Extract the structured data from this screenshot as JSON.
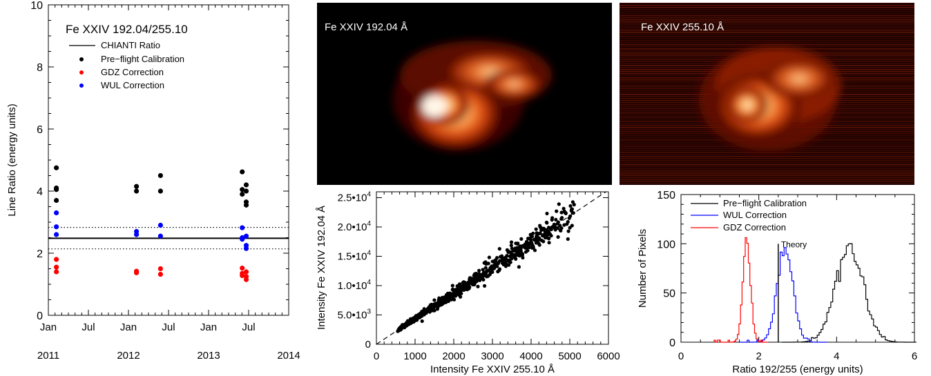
{
  "chart_data": [
    {
      "type": "scatter",
      "title": "Fe XXIV 192.04/255.10",
      "ylabel": "Line Ratio (energy units)",
      "xlabel": "",
      "ylim": [
        0,
        10
      ],
      "yticks": [
        "0",
        "2",
        "4",
        "6",
        "8",
        "10"
      ],
      "xticks": [
        {
          "label": "Jan",
          "x": 2011.0
        },
        {
          "label": "Jul",
          "x": 2011.5
        },
        {
          "label": "Jan",
          "x": 2012.0
        },
        {
          "label": "Jul",
          "x": 2012.5
        },
        {
          "label": "Jan",
          "x": 2013.0
        },
        {
          "label": "Jul",
          "x": 2013.5
        }
      ],
      "year_labels": [
        {
          "label": "2011",
          "x": 2011.0
        },
        {
          "label": "2012",
          "x": 2012.0
        },
        {
          "label": "2013",
          "x": 2013.0
        },
        {
          "label": "2014",
          "x": 2014.0
        }
      ],
      "xlim": [
        2011.0,
        2014.0
      ],
      "chianti_ratio": 2.48,
      "chianti_band": [
        2.14,
        2.83
      ],
      "legend": [
        "CHIANTI Ratio",
        "Pre−flight Calibration",
        "GDZ Correction",
        "WUL Correction"
      ],
      "legend_placement": "top-left",
      "series": [
        {
          "name": "Pre−flight Calibration",
          "color": "#000000",
          "points": [
            [
              2011.1,
              4.75
            ],
            [
              2011.1,
              4.1
            ],
            [
              2011.1,
              4.05
            ],
            [
              2011.1,
              3.7
            ],
            [
              2012.1,
              4.15
            ],
            [
              2012.1,
              4.0
            ],
            [
              2012.4,
              4.5
            ],
            [
              2012.4,
              4.0
            ],
            [
              2013.42,
              4.62
            ],
            [
              2013.42,
              4.05
            ],
            [
              2013.42,
              3.9
            ],
            [
              2013.47,
              4.2
            ],
            [
              2013.47,
              4.0
            ],
            [
              2013.47,
              3.65
            ],
            [
              2013.47,
              3.55
            ]
          ]
        },
        {
          "name": "GDZ Correction",
          "color": "#ff0000",
          "points": [
            [
              2011.1,
              1.8
            ],
            [
              2011.1,
              1.55
            ],
            [
              2011.1,
              1.4
            ],
            [
              2012.1,
              1.42
            ],
            [
              2012.1,
              1.37
            ],
            [
              2012.4,
              1.5
            ],
            [
              2012.4,
              1.32
            ],
            [
              2013.42,
              1.52
            ],
            [
              2013.42,
              1.35
            ],
            [
              2013.42,
              1.28
            ],
            [
              2013.47,
              1.4
            ],
            [
              2013.47,
              1.25
            ],
            [
              2013.47,
              1.15
            ]
          ]
        },
        {
          "name": "WUL Correction",
          "color": "#0000ff",
          "points": [
            [
              2011.1,
              3.3
            ],
            [
              2011.1,
              2.85
            ],
            [
              2011.1,
              2.6
            ],
            [
              2012.1,
              2.7
            ],
            [
              2012.1,
              2.6
            ],
            [
              2012.4,
              2.9
            ],
            [
              2012.4,
              2.55
            ],
            [
              2013.42,
              2.82
            ],
            [
              2013.42,
              2.45
            ],
            [
              2013.42,
              2.5
            ],
            [
              2013.47,
              2.55
            ],
            [
              2013.47,
              2.25
            ],
            [
              2013.47,
              2.15
            ]
          ]
        }
      ]
    },
    {
      "type": "image",
      "label": "Fe XXIV 192.04 Å",
      "colormap": "hot"
    },
    {
      "type": "image",
      "label": "Fe XXIV 255.10 Å",
      "colormap": "hot"
    },
    {
      "type": "scatter",
      "xlabel": "Intensity Fe XXIV 255.10 Å",
      "ylabel": "Intensity Fe XXIV 192.04 Å",
      "xlim": [
        0,
        6000
      ],
      "ylim": [
        0,
        26000
      ],
      "xticks": [
        "0",
        "1000",
        "2000",
        "3000",
        "4000",
        "5000",
        "6000"
      ],
      "yticks": [
        {
          "value": 0,
          "mant": "0",
          "exp": ""
        },
        {
          "value": 5000,
          "mant": "5.0•",
          "base": "10",
          "exp": "3"
        },
        {
          "value": 10000,
          "mant": "1.0•",
          "base": "10",
          "exp": "4"
        },
        {
          "value": 15000,
          "mant": "1.5•",
          "base": "10",
          "exp": "4"
        },
        {
          "value": 20000,
          "mant": "2.0•",
          "base": "10",
          "exp": "4"
        },
        {
          "value": 25000,
          "mant": "2.5•",
          "base": "10",
          "exp": "4"
        }
      ],
      "fit_line": {
        "slope": 4.38,
        "intercept": 0,
        "style": "dashed"
      },
      "cloud": {
        "x_min": 600,
        "x_max": 5100,
        "slope": 4.38,
        "intercept": 0,
        "scatter_fraction": 0.06,
        "count": 700
      }
    },
    {
      "type": "line",
      "xlabel": "Ratio 192/255 (energy units)",
      "ylabel": "Number of Pixels",
      "xlim": [
        0,
        6
      ],
      "ylim": [
        0,
        150
      ],
      "xticks": [
        "0",
        "2",
        "4",
        "6"
      ],
      "yticks": [
        "0",
        "50",
        "100",
        "150"
      ],
      "theory_line": {
        "x": 2.5,
        "label": "Theory"
      },
      "legend": [
        "Pre−flight Calibration",
        "WUL Correction",
        "GDZ Correction"
      ],
      "legend_placement": "top-left",
      "series": [
        {
          "name": "Pre−flight Calibration",
          "color": "#000000",
          "histogram": {
            "center": 4.3,
            "sigma": 0.35,
            "peak": 100,
            "from": 2.6,
            "to": 6.0,
            "bin": 0.05
          }
        },
        {
          "name": "WUL Correction",
          "color": "#0000ff",
          "histogram": {
            "center": 2.65,
            "sigma": 0.2,
            "peak": 100,
            "from": 1.5,
            "to": 3.7,
            "bin": 0.05
          }
        },
        {
          "name": "GDZ Correction",
          "color": "#ff0000",
          "histogram": {
            "center": 1.67,
            "sigma": 0.1,
            "peak": 100,
            "from": 0.85,
            "to": 2.2,
            "bin": 0.04
          }
        }
      ]
    }
  ]
}
